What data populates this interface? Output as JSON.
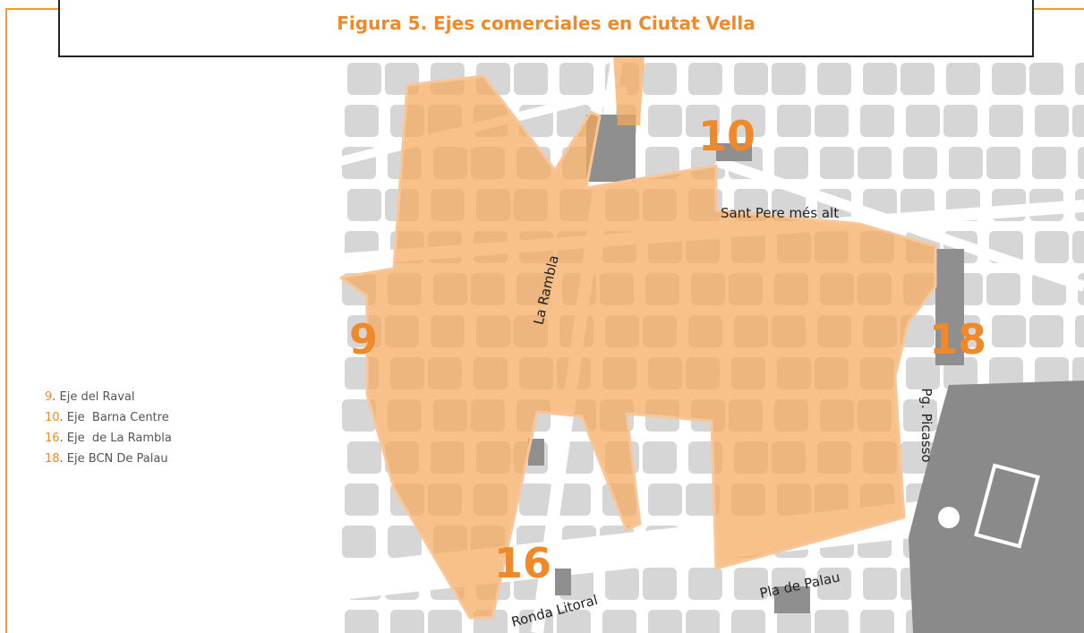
{
  "header": {
    "title": "Figura 5. Ejes comerciales en Ciutat Vella"
  },
  "legend": [
    {
      "number": "9",
      "text": ". Eje del Raval"
    },
    {
      "number": "10",
      "text": ". Eje  Barna Centre"
    },
    {
      "number": "16",
      "text": ". Eje  de La Rambla"
    },
    {
      "number": "18",
      "text": ". Eje BCN De Palau"
    }
  ],
  "map": {
    "zones": [
      "9",
      "10",
      "16",
      "18"
    ],
    "streets": [
      "La Rambla",
      "Sant Pere més alt",
      "Pg. Picasso",
      "Pla de Palau",
      "Ronda Litoral"
    ]
  }
}
